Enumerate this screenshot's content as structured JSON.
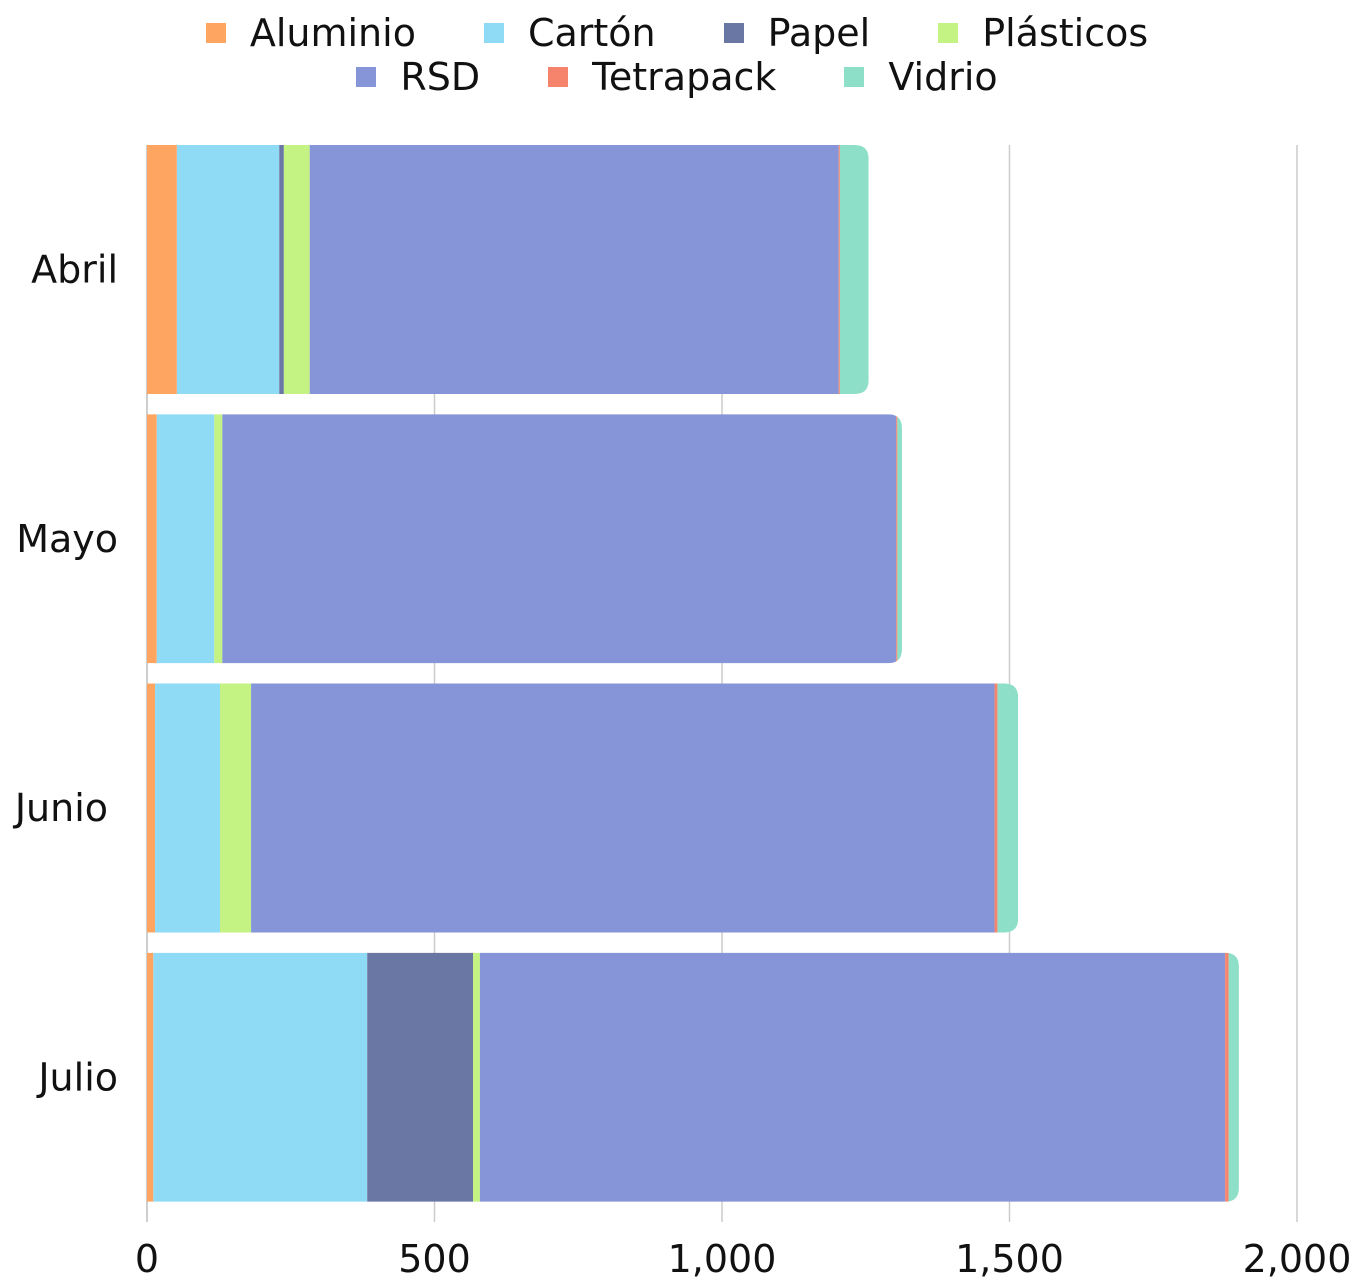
{
  "chart_data": {
    "type": "bar",
    "orientation": "horizontal",
    "stacked": true,
    "categories": [
      "Abril",
      "Mayo",
      "Junio",
      "Julio"
    ],
    "series": [
      {
        "name": "Aluminio",
        "color": "#FFA562",
        "values": [
          52,
          17,
          14,
          11
        ]
      },
      {
        "name": "Cartón",
        "color": "#8FDAF5",
        "values": [
          178,
          100,
          113,
          372
        ]
      },
      {
        "name": "Papel",
        "color": "#6A76A3",
        "values": [
          8,
          0,
          0,
          184
        ]
      },
      {
        "name": "Plásticos",
        "color": "#C4F283",
        "values": [
          45,
          14,
          54,
          12
        ]
      },
      {
        "name": "RSD",
        "color": "#8695D8",
        "values": [
          920,
          1172,
          1293,
          1296
        ]
      },
      {
        "name": "Tetrapack",
        "color": "#F6836B",
        "values": [
          2,
          2,
          5,
          6
        ]
      },
      {
        "name": "Vidrio",
        "color": "#8DDFC7",
        "values": [
          50,
          8,
          36,
          18
        ]
      }
    ],
    "xlim": [
      0,
      2000
    ],
    "x_ticks": [
      "0",
      "500",
      "1,000",
      "1,500",
      "2,000"
    ],
    "x_tick_values": [
      0,
      500,
      1000,
      1500,
      2000
    ],
    "xlabel": "",
    "ylabel": "",
    "title": "",
    "grid": "vertical",
    "legend_position": "top"
  }
}
